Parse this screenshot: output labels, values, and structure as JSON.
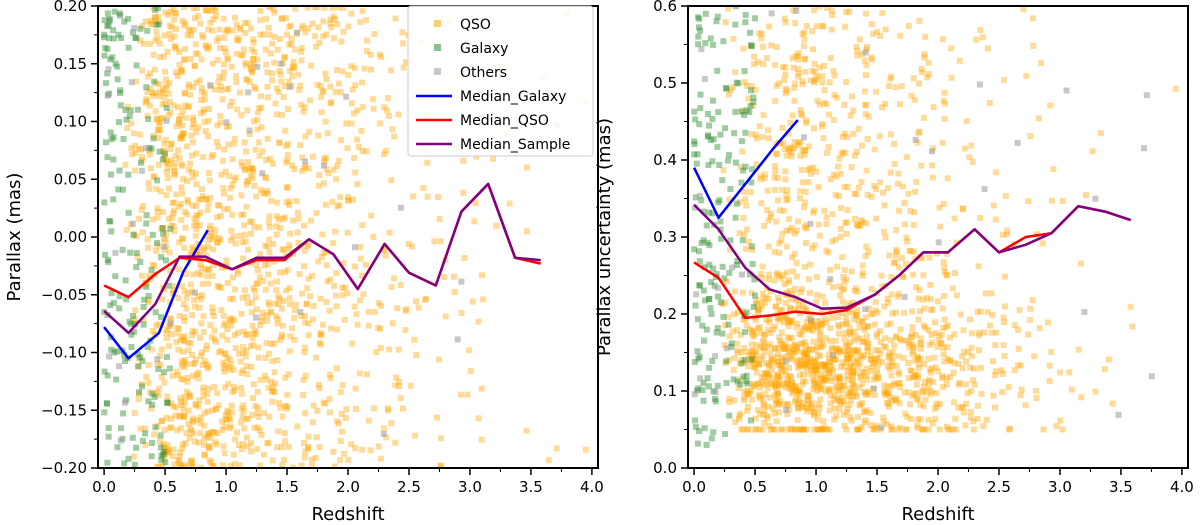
{
  "colors": {
    "qso": "#ffa500",
    "galaxy": "#2e8b2e",
    "others": "#9a9a9a",
    "median_galaxy": "#0000ff",
    "median_qso": "#ff0000",
    "median_sample": "#800080"
  },
  "legend": [
    "QSO",
    "Galaxy",
    "Others",
    "Median_Galaxy",
    "Median_QSO",
    "Median_Sample"
  ],
  "chart_data": [
    {
      "type": "scatter",
      "title": "",
      "xlabel": "Redshift",
      "ylabel": "Parallax (mas)",
      "xlim": [
        -0.05,
        4.05
      ],
      "ylim": [
        -0.2,
        0.2
      ],
      "xticks": [
        0.0,
        0.5,
        1.0,
        1.5,
        2.0,
        2.5,
        3.0,
        3.5,
        4.0
      ],
      "xtick_labels": [
        "0.0",
        "0.5",
        "1.0",
        "1.5",
        "2.0",
        "2.5",
        "3.0",
        "3.5",
        "4.0"
      ],
      "yticks": [
        -0.2,
        -0.15,
        -0.1,
        -0.05,
        0.0,
        0.05,
        0.1,
        0.15,
        0.2
      ],
      "ytick_labels": [
        "−0.20",
        "−0.15",
        "−0.10",
        "−0.05",
        "0.00",
        "0.05",
        "0.10",
        "0.15",
        "0.20"
      ],
      "legend_position": "top-right",
      "scatter_density": {
        "QSO": {
          "x_range": [
            0.05,
            3.95
          ],
          "y_range": [
            -0.2,
            0.2
          ]
        },
        "Galaxy": {
          "x_range": [
            0.0,
            0.55
          ],
          "y_range": [
            -0.2,
            0.2
          ]
        },
        "Others": {
          "x_range": [
            0.0,
            3.8
          ],
          "y_range": [
            -0.2,
            0.2
          ]
        }
      },
      "series": [
        {
          "name": "Median_Galaxy",
          "x": [
            0.0,
            0.2,
            0.45,
            0.65,
            0.85
          ],
          "y": [
            -0.078,
            -0.105,
            -0.083,
            -0.03,
            0.006
          ]
        },
        {
          "name": "Median_QSO",
          "x": [
            0.0,
            0.2,
            0.42,
            0.62,
            0.83,
            1.05,
            1.25,
            1.48,
            1.68,
            1.88,
            2.08,
            2.3,
            2.5,
            2.72,
            2.93,
            3.15,
            3.37,
            3.58
          ],
          "y": [
            -0.042,
            -0.052,
            -0.032,
            -0.018,
            -0.02,
            -0.028,
            -0.02,
            -0.02,
            -0.002,
            -0.015,
            -0.045,
            -0.006,
            -0.031,
            -0.042,
            0.022,
            0.046,
            -0.018,
            -0.023
          ]
        },
        {
          "name": "Median_Sample",
          "x": [
            0.0,
            0.2,
            0.42,
            0.62,
            0.83,
            1.05,
            1.25,
            1.48,
            1.68,
            1.88,
            2.08,
            2.3,
            2.5,
            2.72,
            2.93,
            3.15,
            3.37,
            3.58
          ],
          "y": [
            -0.064,
            -0.083,
            -0.058,
            -0.017,
            -0.017,
            -0.028,
            -0.018,
            -0.018,
            -0.002,
            -0.015,
            -0.045,
            -0.006,
            -0.031,
            -0.042,
            0.022,
            0.046,
            -0.018,
            -0.02
          ]
        }
      ]
    },
    {
      "type": "scatter",
      "title": "",
      "xlabel": "Redshift",
      "ylabel": "Parallax uncertainty (mas)",
      "xlim": [
        -0.05,
        4.05
      ],
      "ylim": [
        0.0,
        0.6
      ],
      "xticks": [
        0.0,
        0.5,
        1.0,
        1.5,
        2.0,
        2.5,
        3.0,
        3.5,
        4.0
      ],
      "xtick_labels": [
        "0.0",
        "0.5",
        "1.0",
        "1.5",
        "2.0",
        "2.5",
        "3.0",
        "3.5",
        "4.0"
      ],
      "yticks": [
        0.0,
        0.1,
        0.2,
        0.3,
        0.4,
        0.5,
        0.6
      ],
      "ytick_labels": [
        "0.0",
        "0.1",
        "0.2",
        "0.3",
        "0.4",
        "0.5",
        "0.6"
      ],
      "scatter_density": {
        "QSO": {
          "x_range": [
            0.05,
            3.95
          ],
          "y_range": [
            0.05,
            0.6
          ]
        },
        "Galaxy": {
          "x_range": [
            0.0,
            0.5
          ],
          "y_range": [
            0.03,
            0.6
          ]
        },
        "Others": {
          "x_range": [
            0.0,
            3.8
          ],
          "y_range": [
            0.03,
            0.6
          ]
        }
      },
      "series": [
        {
          "name": "Median_Galaxy",
          "x": [
            0.0,
            0.2,
            0.45,
            0.65,
            0.85
          ],
          "y": [
            0.39,
            0.325,
            0.375,
            0.415,
            0.452
          ]
        },
        {
          "name": "Median_QSO",
          "x": [
            0.0,
            0.2,
            0.42,
            0.62,
            0.83,
            1.05,
            1.25,
            1.48,
            1.68,
            1.88,
            2.08,
            2.3,
            2.5,
            2.72,
            2.93,
            3.15,
            3.37,
            3.58
          ],
          "y": [
            0.267,
            0.247,
            0.195,
            0.198,
            0.203,
            0.2,
            0.205,
            0.225,
            0.25,
            0.28,
            0.28,
            0.31,
            0.28,
            0.3,
            0.305,
            0.34,
            0.333,
            0.322
          ]
        },
        {
          "name": "Median_Sample",
          "x": [
            0.0,
            0.2,
            0.42,
            0.62,
            0.83,
            1.05,
            1.25,
            1.48,
            1.68,
            1.88,
            2.08,
            2.3,
            2.5,
            2.72,
            2.93,
            3.15,
            3.37,
            3.58
          ],
          "y": [
            0.342,
            0.31,
            0.26,
            0.232,
            0.222,
            0.207,
            0.208,
            0.225,
            0.25,
            0.28,
            0.28,
            0.31,
            0.28,
            0.29,
            0.305,
            0.34,
            0.333,
            0.322
          ]
        }
      ]
    }
  ]
}
